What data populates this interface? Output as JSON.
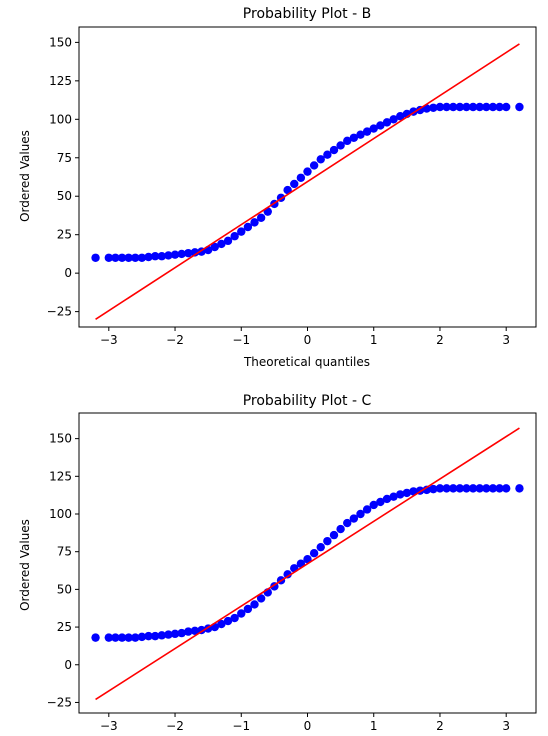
{
  "chart_data": [
    {
      "type": "scatter",
      "title": "Probability Plot - B",
      "xlabel": "Theoretical quantiles",
      "ylabel": "Ordered Values",
      "xlim": [
        -3.45,
        3.45
      ],
      "ylim": [
        -35,
        160
      ],
      "xticks": [
        -3,
        -2,
        -1,
        0,
        1,
        2,
        3
      ],
      "xtick_labels": [
        "−3",
        "−2",
        "−1",
        "0",
        "1",
        "2",
        "3"
      ],
      "yticks": [
        -25,
        0,
        25,
        50,
        75,
        100,
        125,
        150
      ],
      "ytick_labels": [
        "−25",
        "0",
        "25",
        "50",
        "75",
        "100",
        "125",
        "150"
      ],
      "grid": false,
      "series": [
        {
          "kind": "points",
          "color": "#0000ff",
          "x": [
            -3.2,
            -3.0,
            -2.9,
            -2.8,
            -2.7,
            -2.6,
            -2.5,
            -2.4,
            -2.3,
            -2.2,
            -2.1,
            -2.0,
            -1.9,
            -1.8,
            -1.7,
            -1.6,
            -1.5,
            -1.4,
            -1.3,
            -1.2,
            -1.1,
            -1.0,
            -0.9,
            -0.8,
            -0.7,
            -0.6,
            -0.5,
            -0.4,
            -0.3,
            -0.2,
            -0.1,
            0.0,
            0.1,
            0.2,
            0.3,
            0.4,
            0.5,
            0.6,
            0.7,
            0.8,
            0.9,
            1.0,
            1.1,
            1.2,
            1.3,
            1.4,
            1.5,
            1.6,
            1.7,
            1.8,
            1.9,
            2.0,
            2.1,
            2.2,
            2.3,
            2.4,
            2.5,
            2.6,
            2.7,
            2.8,
            2.9,
            3.0,
            3.2
          ],
          "y": [
            10,
            10,
            10,
            10,
            10,
            10,
            10,
            10.5,
            11,
            11,
            11.5,
            12,
            12.5,
            13,
            13.5,
            14,
            15,
            17,
            19,
            21,
            24,
            27,
            30,
            33,
            36,
            40,
            45,
            49,
            54,
            58,
            62,
            66,
            70,
            74,
            77,
            80,
            83,
            86,
            88,
            90,
            92,
            94,
            96,
            98,
            100,
            102,
            103.5,
            105,
            106,
            107,
            107.5,
            108,
            108,
            108,
            108,
            108,
            108,
            108,
            108,
            108,
            108,
            108,
            108
          ]
        },
        {
          "kind": "fit-line",
          "color": "#ff0000",
          "x": [
            -3.2,
            3.2
          ],
          "y": [
            -30,
            149
          ]
        }
      ]
    },
    {
      "type": "scatter",
      "title": "Probability Plot - C",
      "xlabel": "",
      "ylabel": "Ordered Values",
      "xlim": [
        -3.45,
        3.45
      ],
      "ylim": [
        -32,
        167
      ],
      "xticks": [
        -3,
        -2,
        -1,
        0,
        1,
        2,
        3
      ],
      "xtick_labels": [
        "−3",
        "−2",
        "−1",
        "0",
        "1",
        "2",
        "3"
      ],
      "yticks": [
        -25,
        0,
        25,
        50,
        75,
        100,
        125,
        150
      ],
      "ytick_labels": [
        "−25",
        "0",
        "25",
        "50",
        "75",
        "100",
        "125",
        "150"
      ],
      "grid": false,
      "series": [
        {
          "kind": "points",
          "color": "#0000ff",
          "x": [
            -3.2,
            -3.0,
            -2.9,
            -2.8,
            -2.7,
            -2.6,
            -2.5,
            -2.4,
            -2.3,
            -2.2,
            -2.1,
            -2.0,
            -1.9,
            -1.8,
            -1.7,
            -1.6,
            -1.5,
            -1.4,
            -1.3,
            -1.2,
            -1.1,
            -1.0,
            -0.9,
            -0.8,
            -0.7,
            -0.6,
            -0.5,
            -0.4,
            -0.3,
            -0.2,
            -0.1,
            0.0,
            0.1,
            0.2,
            0.3,
            0.4,
            0.5,
            0.6,
            0.7,
            0.8,
            0.9,
            1.0,
            1.1,
            1.2,
            1.3,
            1.4,
            1.5,
            1.6,
            1.7,
            1.8,
            1.9,
            2.0,
            2.1,
            2.2,
            2.3,
            2.4,
            2.5,
            2.6,
            2.7,
            2.8,
            2.9,
            3.0,
            3.2
          ],
          "y": [
            18,
            18,
            18,
            18,
            18,
            18,
            18.5,
            19,
            19,
            19.5,
            20,
            20.5,
            21,
            22,
            22.5,
            23,
            24,
            25,
            27,
            29,
            31,
            34,
            37,
            40,
            44,
            48,
            52,
            56,
            60,
            64,
            67,
            70,
            74,
            78,
            82,
            86,
            90,
            94,
            97,
            100,
            103,
            106,
            108,
            110,
            111.5,
            113,
            114,
            115,
            115.5,
            116,
            116.5,
            117,
            117,
            117,
            117,
            117,
            117,
            117,
            117,
            117,
            117,
            117,
            117
          ]
        },
        {
          "kind": "fit-line",
          "color": "#ff0000",
          "x": [
            -3.2,
            3.2
          ],
          "y": [
            -23,
            157
          ]
        }
      ]
    }
  ]
}
